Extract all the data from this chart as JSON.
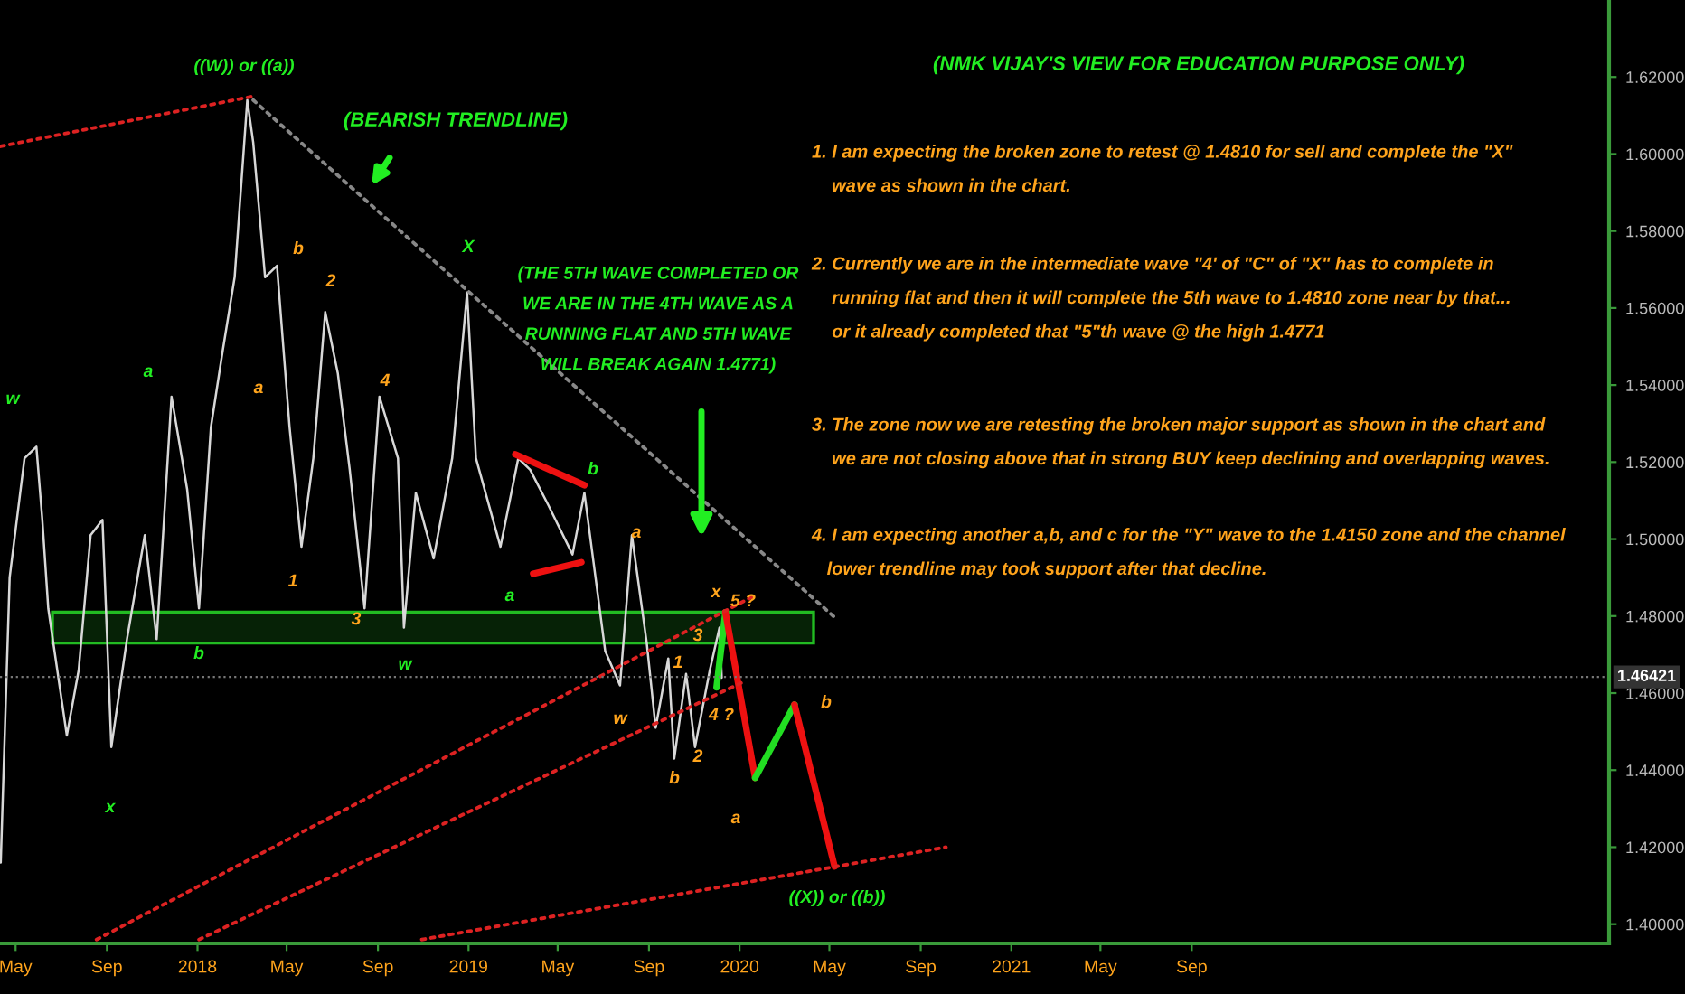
{
  "chart_data": {
    "type": "line",
    "title": "(NMK VIJAY'S VIEW FOR EDUCATION PURPOSE ONLY)",
    "xlim": [
      "2017-04-10",
      "2023-03-17"
    ],
    "xticks": [
      {
        "value": "2017-05-01",
        "label": "May"
      },
      {
        "value": "2017-09-01",
        "label": "Sep"
      },
      {
        "value": "2018-01-01",
        "label": "2018"
      },
      {
        "value": "2018-05-01",
        "label": "May"
      },
      {
        "value": "2018-09-01",
        "label": "Sep"
      },
      {
        "value": "2019-01-01",
        "label": "2019"
      },
      {
        "value": "2019-05-01",
        "label": "May"
      },
      {
        "value": "2019-09-01",
        "label": "Sep"
      },
      {
        "value": "2020-01-01",
        "label": "2020"
      },
      {
        "value": "2020-05-01",
        "label": "May"
      },
      {
        "value": "2020-09-01",
        "label": "Sep"
      },
      {
        "value": "2021-01-01",
        "label": "2021"
      },
      {
        "value": "2021-05-01",
        "label": "May"
      },
      {
        "value": "2021-09-01",
        "label": "Sep"
      }
    ],
    "ylim": [
      1.395,
      1.64
    ],
    "yticks": [
      {
        "value": 1.4,
        "label": "1.40000"
      },
      {
        "value": 1.42,
        "label": "1.42000"
      },
      {
        "value": 1.44,
        "label": "1.44000"
      },
      {
        "value": 1.46,
        "label": "1.46000"
      },
      {
        "value": 1.48,
        "label": "1.48000"
      },
      {
        "value": 1.5,
        "label": "1.50000"
      },
      {
        "value": 1.52,
        "label": "1.52000"
      },
      {
        "value": 1.54,
        "label": "1.54000"
      },
      {
        "value": 1.56,
        "label": "1.56000"
      },
      {
        "value": 1.58,
        "label": "1.58000"
      },
      {
        "value": 1.6,
        "label": "1.60000"
      },
      {
        "value": 1.62,
        "label": "1.62000"
      }
    ],
    "grid": false,
    "legend": false,
    "marker": "none",
    "series": [
      {
        "color": "#d8d8d8",
        "line_style": "solid",
        "x": [
          "2017-04-11",
          "2017-04-23",
          "2017-05-13",
          "2017-05-29",
          "2017-06-06",
          "2017-06-14",
          "2017-07-09",
          "2017-07-25",
          "2017-08-10",
          "2017-08-26",
          "2017-09-07",
          "2017-09-28",
          "2017-10-22",
          "2017-11-07",
          "2017-11-27",
          "2017-12-18",
          "2018-01-03",
          "2018-01-19",
          "2018-02-04",
          "2018-02-20",
          "2018-03-09",
          "2018-03-17",
          "2018-04-02",
          "2018-04-18",
          "2018-05-05",
          "2018-05-21",
          "2018-06-06",
          "2018-06-22",
          "2018-07-09",
          "2018-07-25",
          "2018-08-14",
          "2018-09-03",
          "2018-09-28",
          "2018-10-06",
          "2018-10-22",
          "2018-11-15",
          "2018-12-10",
          "2018-12-30",
          "2019-01-11",
          "2019-02-13",
          "2019-03-09",
          "2019-03-25",
          "2019-04-18",
          "2019-05-21",
          "2019-06-06",
          "2019-07-04",
          "2019-07-24",
          "2019-08-09",
          "2019-08-29",
          "2019-09-10",
          "2019-09-27",
          "2019-10-05",
          "2019-10-21",
          "2019-11-02",
          "2019-11-22",
          "2019-12-05",
          "2019-12-08"
        ],
        "values": [
          1.416,
          1.49,
          1.521,
          1.524,
          1.505,
          1.482,
          1.449,
          1.466,
          1.501,
          1.505,
          1.446,
          1.474,
          1.501,
          1.474,
          1.537,
          1.513,
          1.482,
          1.529,
          1.549,
          1.568,
          1.614,
          1.603,
          1.568,
          1.571,
          1.529,
          1.498,
          1.521,
          1.559,
          1.543,
          1.518,
          1.482,
          1.537,
          1.521,
          1.477,
          1.512,
          1.495,
          1.521,
          1.564,
          1.521,
          1.498,
          1.521,
          1.518,
          1.509,
          1.496,
          1.512,
          1.471,
          1.462,
          1.501,
          1.473,
          1.451,
          1.469,
          1.443,
          1.465,
          1.446,
          1.466,
          1.477,
          1.464
        ]
      },
      {
        "color": "#22dd22",
        "line_style": "solid",
        "x": [
          "2019-12-01",
          "2019-12-13"
        ],
        "values": [
          1.4615,
          1.481
        ]
      },
      {
        "color": "#ee1111",
        "line_style": "solid",
        "x": [
          "2019-12-13",
          "2020-01-22"
        ],
        "values": [
          1.481,
          1.438
        ]
      },
      {
        "color": "#22dd22",
        "line_style": "solid",
        "x": [
          "2020-01-22",
          "2020-03-15"
        ],
        "values": [
          1.438,
          1.457
        ]
      },
      {
        "color": "#ee1111",
        "line_style": "solid",
        "x": [
          "2020-03-15",
          "2020-05-08"
        ],
        "values": [
          1.457,
          1.415
        ]
      },
      {
        "color": "#ee1111",
        "line_style": "solid",
        "x": [
          "2019-03-05",
          "2019-06-06"
        ],
        "values": [
          1.522,
          1.514
        ]
      },
      {
        "color": "#ee1111",
        "line_style": "solid",
        "x": [
          "2019-03-29",
          "2019-06-02"
        ],
        "values": [
          1.491,
          1.494
        ]
      },
      {
        "color": "#dd2222",
        "line_style": "dotted",
        "x": [
          "2017-04-11",
          "2018-03-17"
        ],
        "values": [
          1.602,
          1.615
        ]
      },
      {
        "color": "#dd2222",
        "line_style": "dotted",
        "x": [
          "2017-08-18",
          "2020-01-18"
        ],
        "values": [
          1.396,
          1.485
        ]
      },
      {
        "color": "#dd2222",
        "line_style": "dotted",
        "x": [
          "2018-01-03",
          "2020-01-07"
        ],
        "values": [
          1.396,
          1.463
        ]
      },
      {
        "color": "#dd2222",
        "line_style": "dotted",
        "x": [
          "2018-10-30",
          "2020-10-05"
        ],
        "values": [
          1.396,
          1.42
        ]
      },
      {
        "color": "#888888",
        "line_style": "dotted",
        "x": [
          "2018-03-17",
          "2020-05-12"
        ],
        "values": [
          1.614,
          1.479
        ]
      }
    ],
    "bands": [
      {
        "axis": "y",
        "from": 1.473,
        "to": 1.481,
        "color": "#22bb22"
      }
    ],
    "ref_lines": [
      {
        "axis": "y",
        "value": 1.46421,
        "label": "1.46421",
        "color": "#777777",
        "line_style": "dotted"
      }
    ],
    "annotations": [
      "(BEARISH TRENDLINE)",
      "(THE 5TH WAVE COMPLETED OR\nWE ARE IN THE 4TH WAVE AS A\nRUNNING FLAT AND 5TH WAVE\nWILL BREAK AGAIN 1.4771)",
      "1. I am expecting the broken zone to retest @ 1.4810 for sell and complete the \"X\"\n    wave as shown in the chart.",
      "2. Currently we are in the intermediate wave \"4' of \"C\" of \"X\" has to complete in\n    running flat and then it will complete the 5th wave to 1.4810 zone near by that...\n    or it already completed that \"5\"th wave @ the high 1.4771",
      "3. The zone now we are retesting the broken major support as shown in the chart and\n    we are not closing above that in strong BUY keep declining and overlapping waves.",
      "4. I am expecting another a,b, and c for the \"Y\" wave to the 1.4150 zone and the channel\n   lower trendline may took support after that decline.",
      "((W)) or ((a))",
      "w",
      "a",
      "x",
      "b",
      "X",
      "w",
      "a",
      "b",
      "((X)) or ((b))",
      "a",
      "b",
      "2",
      "4",
      "1",
      "3",
      "a",
      "x",
      "5 ?",
      "3",
      "1",
      "w",
      "4 ?",
      "b",
      "2",
      "a",
      "b"
    ]
  }
}
